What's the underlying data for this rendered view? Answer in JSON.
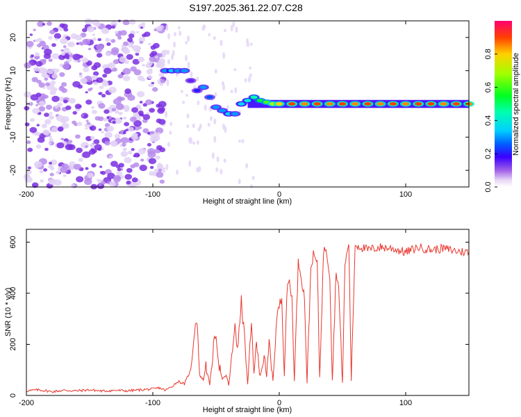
{
  "title": "S197.2025.361.22.07.C28",
  "chart_data": [
    {
      "type": "heatmap",
      "xlabel": "Height of straight line (km)",
      "ylabel": "Frequency (Hz)",
      "xlim": [
        -200,
        150
      ],
      "ylim": [
        -25,
        25
      ],
      "xticks": [
        -200,
        -100,
        0,
        100
      ],
      "yticks": [
        -20,
        -10,
        0,
        10,
        20
      ],
      "xtick_labels": [
        "-200",
        "-100",
        "0",
        "100"
      ],
      "ytick_labels": [
        "-20",
        "-10",
        "0",
        "10",
        "20"
      ],
      "colorbar": {
        "label": "Normalized spectral amplitude",
        "range": [
          0,
          1
        ],
        "ticks": [
          0.0,
          0.2,
          0.4,
          0.6,
          0.8
        ],
        "tick_labels": [
          "0.0",
          "0.2",
          "0.4",
          "0.6",
          "0.8"
        ]
      },
      "ridge": [
        {
          "x": -90,
          "y": 10,
          "z": 0.3
        },
        {
          "x": -85,
          "y": 10,
          "z": 0.35
        },
        {
          "x": -80,
          "y": 10,
          "z": 0.3
        },
        {
          "x": -75,
          "y": 10,
          "z": 0.3
        },
        {
          "x": -70,
          "y": 7,
          "z": 0.15
        },
        {
          "x": -65,
          "y": 4,
          "z": 0.2
        },
        {
          "x": -60,
          "y": 5,
          "z": 0.3
        },
        {
          "x": -55,
          "y": 2,
          "z": 0.25
        },
        {
          "x": -50,
          "y": -1,
          "z": 0.3
        },
        {
          "x": -45,
          "y": -2,
          "z": 0.3
        },
        {
          "x": -40,
          "y": -3,
          "z": 0.35
        },
        {
          "x": -35,
          "y": -3,
          "z": 0.3
        },
        {
          "x": -30,
          "y": 0,
          "z": 0.35
        },
        {
          "x": -25,
          "y": 1,
          "z": 0.4
        },
        {
          "x": -20,
          "y": 2,
          "z": 0.45
        },
        {
          "x": -15,
          "y": 1,
          "z": 0.55
        },
        {
          "x": -10,
          "y": 0.5,
          "z": 0.6
        },
        {
          "x": -5,
          "y": 0,
          "z": 0.7
        },
        {
          "x": 0,
          "y": 0,
          "z": 0.8
        },
        {
          "x": 10,
          "y": 0,
          "z": 0.9
        },
        {
          "x": 20,
          "y": 0,
          "z": 0.85
        },
        {
          "x": 30,
          "y": 0,
          "z": 0.9
        },
        {
          "x": 40,
          "y": 0,
          "z": 0.85
        },
        {
          "x": 50,
          "y": 0,
          "z": 0.9
        },
        {
          "x": 60,
          "y": 0,
          "z": 0.85
        },
        {
          "x": 70,
          "y": 0,
          "z": 0.9
        },
        {
          "x": 80,
          "y": 0,
          "z": 0.85
        },
        {
          "x": 90,
          "y": 0,
          "z": 0.9
        },
        {
          "x": 100,
          "y": 0,
          "z": 0.85
        },
        {
          "x": 110,
          "y": 0,
          "z": 0.9
        },
        {
          "x": 120,
          "y": 0,
          "z": 0.9
        },
        {
          "x": 130,
          "y": 0,
          "z": 0.85
        },
        {
          "x": 140,
          "y": 0,
          "z": 0.9
        },
        {
          "x": 150,
          "y": 0,
          "z": 0.85
        }
      ]
    },
    {
      "type": "line",
      "xlabel": "Height of straight line (km)",
      "ylabel": "SNR (10 * v/v)",
      "xlim": [
        -200,
        150
      ],
      "ylim": [
        0,
        650
      ],
      "xticks": [
        -200,
        -100,
        0,
        100
      ],
      "yticks": [
        0,
        200,
        400,
        600
      ],
      "xtick_labels": [
        "-200",
        "-100",
        "0",
        "100"
      ],
      "ytick_labels": [
        "0",
        "200",
        "400",
        "600"
      ],
      "color": "#e8362c",
      "series": [
        {
          "name": "SNR",
          "x": [
            -200,
            -190,
            -180,
            -170,
            -160,
            -150,
            -140,
            -130,
            -120,
            -110,
            -100,
            -95,
            -90,
            -85,
            -80,
            -75,
            -70,
            -67,
            -65,
            -63,
            -60,
            -58,
            -55,
            -52,
            -50,
            -48,
            -45,
            -42,
            -40,
            -37,
            -35,
            -33,
            -30,
            -27,
            -25,
            -22,
            -20,
            -18,
            -15,
            -12,
            -10,
            -8,
            -5,
            -2,
            0,
            2,
            4,
            6,
            8,
            10,
            12,
            15,
            17,
            20,
            22,
            25,
            27,
            30,
            32,
            35,
            37,
            40,
            42,
            45,
            47,
            50,
            52,
            55,
            57,
            60,
            65,
            70,
            80,
            90,
            100,
            110,
            120,
            130,
            140,
            150
          ],
          "y": [
            18,
            22,
            15,
            20,
            18,
            22,
            17,
            20,
            18,
            22,
            25,
            30,
            20,
            35,
            55,
            45,
            100,
            260,
            300,
            80,
            60,
            120,
            40,
            190,
            250,
            130,
            60,
            80,
            40,
            170,
            290,
            170,
            370,
            200,
            40,
            280,
            90,
            200,
            80,
            150,
            70,
            210,
            60,
            300,
            350,
            380,
            80,
            400,
            450,
            380,
            60,
            520,
            480,
            380,
            50,
            500,
            550,
            520,
            70,
            560,
            580,
            470,
            60,
            490,
            420,
            50,
            510,
            600,
            60,
            590,
            580,
            570,
            580,
            575,
            560,
            580,
            570,
            575,
            565,
            560
          ]
        }
      ]
    }
  ]
}
